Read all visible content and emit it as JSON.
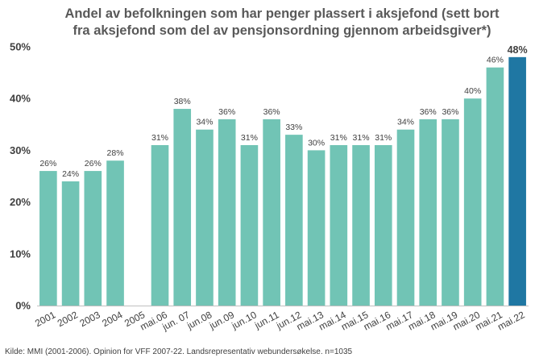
{
  "chart_data": {
    "type": "bar",
    "title_lines": [
      "Andel av befolkningen som har penger plassert i aksjefond (sett bort",
      "fra aksjefond som del av pensjonsordning gjennom arbeidsgiver*)"
    ],
    "categories": [
      "2001",
      "2002",
      "2003",
      "2004",
      "2005",
      "mai.06",
      "jun. 07",
      "jun.08",
      "jun.09",
      "jun.10",
      "jun.11",
      "jun.12",
      "mai.13",
      "mai.14",
      "mai.15",
      "mai.16",
      "mai.17",
      "mai.18",
      "mai.19",
      "mai.20",
      "mai.21",
      "mai.22"
    ],
    "values": [
      26,
      24,
      26,
      28,
      null,
      31,
      38,
      34,
      36,
      31,
      36,
      33,
      30,
      31,
      31,
      31,
      34,
      36,
      36,
      40,
      46,
      48
    ],
    "value_labels": [
      "26%",
      "24%",
      "26%",
      "28%",
      "",
      "31%",
      "38%",
      "34%",
      "36%",
      "31%",
      "36%",
      "33%",
      "30%",
      "31%",
      "31%",
      "31%",
      "34%",
      "36%",
      "36%",
      "40%",
      "46%",
      "48%"
    ],
    "y_ticks": [
      "0%",
      "10%",
      "20%",
      "30%",
      "40%",
      "50%"
    ],
    "ylim": [
      0,
      50
    ],
    "grid": false,
    "legend": "none",
    "highlight_index": 21,
    "colors": {
      "bar": "#71c4b5",
      "highlight": "#1f77a3",
      "axis": "#bfbfbf",
      "text": "#404040",
      "title": "#595959"
    }
  },
  "source": "Kilde: MMI (2001-2006). Opinion for VFF 2007-22. Landsrepresentativ webundersøkelse. n=1035"
}
